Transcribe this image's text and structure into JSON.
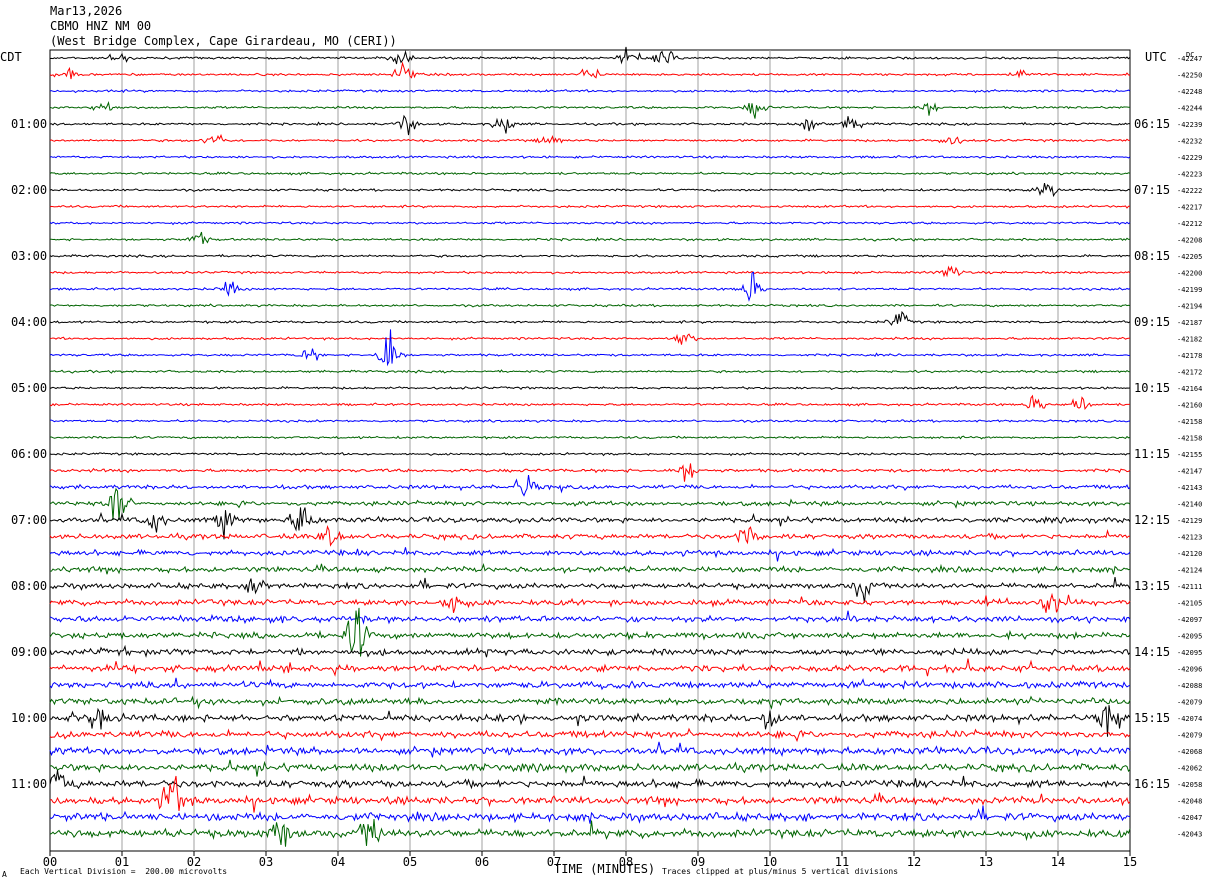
{
  "header": {
    "date": "Mar13,2026",
    "station": "CBMO HNZ NM 00",
    "location": "(West Bridge Complex, Cape Girardeau, MO (CERI))"
  },
  "axes": {
    "left_tz": "CDT",
    "right_tz": "UTC",
    "dc_label": "DC",
    "xlabel": "TIME (MINUTES)"
  },
  "footer": {
    "scale_note": "Each Vertical Division =  200.00 microvolts",
    "clip_note": "Traces clipped at plus/minus 5 vertical divisions",
    "corner_mark": "A"
  },
  "colors": {
    "cycle": [
      "#000000",
      "#ff0000",
      "#0000ff",
      "#006400"
    ],
    "grid": "#a0a0a0"
  },
  "chart_data": {
    "type": "line",
    "title": "CBMO HNZ NM 00",
    "x_ticks": [
      "00",
      "01",
      "02",
      "03",
      "04",
      "05",
      "06",
      "07",
      "08",
      "09",
      "10",
      "11",
      "12",
      "13",
      "14",
      "15"
    ],
    "xlim": [
      0,
      15
    ],
    "left_hour_labels": [
      "01:00",
      "02:00",
      "03:00",
      "04:00",
      "05:00",
      "06:00",
      "07:00",
      "08:00",
      "09:00",
      "10:00",
      "11:00"
    ],
    "right_hour_labels": [
      "06:15",
      "07:15",
      "08:15",
      "09:15",
      "10:15",
      "11:15",
      "12:15",
      "13:15",
      "14:15",
      "15:15",
      "16:15"
    ],
    "dc_offsets": [
      "-42247",
      "-42250",
      "-42248",
      "-42244",
      "-42239",
      "-42232",
      "-42229",
      "-42223",
      "-42222",
      "-42217",
      "-42212",
      "-42208",
      "-42205",
      "-42200",
      "-42199",
      "-42194",
      "-42187",
      "-42182",
      "-42178",
      "-42172",
      "-42164",
      "-42160",
      "-42158",
      "-42158",
      "-42155",
      "-42147",
      "-42143",
      "-42140",
      "-42129",
      "-42123",
      "-42120",
      "-42124",
      "-42111",
      "-42105",
      "-42097",
      "-42095",
      "-42095",
      "-42096",
      "-42088",
      "-42079",
      "-42074",
      "-42079",
      "-42068",
      "-42062",
      "-42058",
      "-42048",
      "-42047",
      "-42043"
    ],
    "trace_activity": [
      1,
      1,
      1,
      1,
      1,
      1,
      1,
      1,
      1,
      1,
      1,
      1,
      1,
      1,
      1,
      1,
      1,
      1,
      1,
      1,
      1,
      1,
      1,
      1,
      1,
      1.4,
      1.7,
      1.9,
      2.2,
      2.2,
      2.3,
      2.4,
      2.4,
      2.5,
      2.6,
      2.7,
      2.7,
      2.8,
      2.8,
      2.9,
      3,
      3,
      3.1,
      3.2,
      3.2,
      3.3,
      3.4,
      3.5
    ],
    "events": [
      {
        "trace": 0,
        "minute": 0.98,
        "amp": 6
      },
      {
        "trace": 0,
        "minute": 4.9,
        "amp": 9
      },
      {
        "trace": 0,
        "minute": 8.05,
        "amp": 8
      },
      {
        "trace": 0,
        "minute": 8.55,
        "amp": 9
      },
      {
        "trace": 1,
        "minute": 0.25,
        "amp": 6
      },
      {
        "trace": 1,
        "minute": 4.9,
        "amp": 9
      },
      {
        "trace": 1,
        "minute": 7.5,
        "amp": 7
      },
      {
        "trace": 1,
        "minute": 13.5,
        "amp": 5
      },
      {
        "trace": 3,
        "minute": 0.75,
        "amp": 6
      },
      {
        "trace": 3,
        "minute": 9.8,
        "amp": 8
      },
      {
        "trace": 3,
        "minute": 12.2,
        "amp": 6
      },
      {
        "trace": 4,
        "minute": 4.95,
        "amp": 8
      },
      {
        "trace": 4,
        "minute": 6.3,
        "amp": 9
      },
      {
        "trace": 4,
        "minute": 10.55,
        "amp": 8
      },
      {
        "trace": 4,
        "minute": 11.15,
        "amp": 7
      },
      {
        "trace": 5,
        "minute": 2.3,
        "amp": 7
      },
      {
        "trace": 5,
        "minute": 6.95,
        "amp": 6
      },
      {
        "trace": 5,
        "minute": 12.5,
        "amp": 6
      },
      {
        "trace": 8,
        "minute": 13.85,
        "amp": 7
      },
      {
        "trace": 11,
        "minute": 2.05,
        "amp": 6
      },
      {
        "trace": 13,
        "minute": 12.5,
        "amp": 7
      },
      {
        "trace": 14,
        "minute": 9.75,
        "amp": 14
      },
      {
        "trace": 14,
        "minute": 2.5,
        "amp": 6
      },
      {
        "trace": 16,
        "minute": 11.8,
        "amp": 8
      },
      {
        "trace": 17,
        "minute": 8.8,
        "amp": 7
      },
      {
        "trace": 18,
        "minute": 4.7,
        "amp": 26
      },
      {
        "trace": 18,
        "minute": 3.6,
        "amp": 6
      },
      {
        "trace": 21,
        "minute": 13.7,
        "amp": 8
      },
      {
        "trace": 21,
        "minute": 14.3,
        "amp": 8
      },
      {
        "trace": 25,
        "minute": 8.85,
        "amp": 9
      },
      {
        "trace": 26,
        "minute": 6.6,
        "amp": 12
      },
      {
        "trace": 27,
        "minute": 0.95,
        "amp": 22
      },
      {
        "trace": 28,
        "minute": 3.5,
        "amp": 18
      },
      {
        "trace": 28,
        "minute": 2.45,
        "amp": 11
      },
      {
        "trace": 28,
        "minute": 1.45,
        "amp": 10
      },
      {
        "trace": 29,
        "minute": 3.9,
        "amp": 12
      },
      {
        "trace": 29,
        "minute": 9.7,
        "amp": 11
      },
      {
        "trace": 32,
        "minute": 11.3,
        "amp": 12
      },
      {
        "trace": 32,
        "minute": 2.9,
        "amp": 11
      },
      {
        "trace": 33,
        "minute": 5.6,
        "amp": 10
      },
      {
        "trace": 33,
        "minute": 13.9,
        "amp": 11
      },
      {
        "trace": 35,
        "minute": 4.25,
        "amp": 22
      },
      {
        "trace": 40,
        "minute": 0.65,
        "amp": 11
      },
      {
        "trace": 40,
        "minute": 10.0,
        "amp": 11
      },
      {
        "trace": 40,
        "minute": 14.7,
        "amp": 11
      },
      {
        "trace": 45,
        "minute": 1.7,
        "amp": 20
      },
      {
        "trace": 44,
        "minute": 0.12,
        "amp": 11
      },
      {
        "trace": 47,
        "minute": 4.45,
        "amp": 14
      },
      {
        "trace": 47,
        "minute": 3.2,
        "amp": 13
      }
    ]
  }
}
